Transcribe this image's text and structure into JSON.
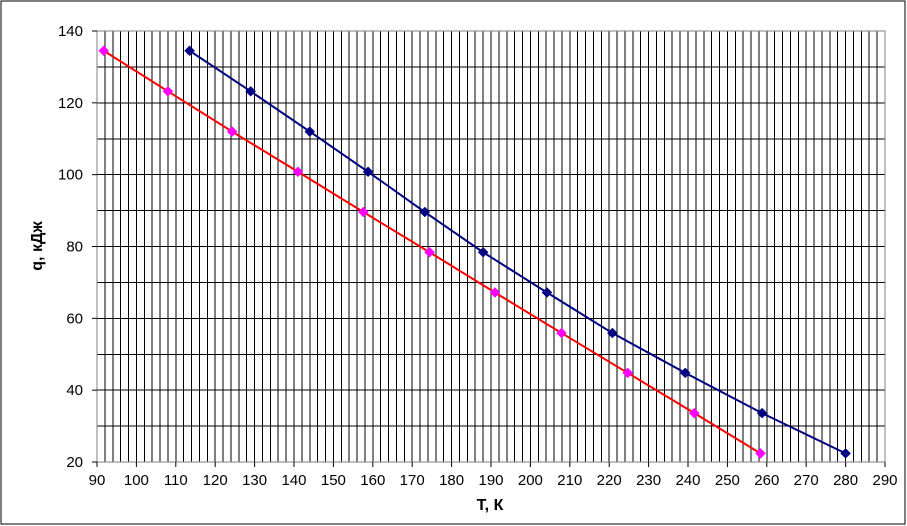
{
  "chart_data": {
    "type": "line",
    "title": "",
    "xlabel": "T, К",
    "ylabel": "q, кДж",
    "xlim": [
      90,
      290
    ],
    "ylim": [
      20,
      140
    ],
    "x_major_ticks": [
      90,
      100,
      110,
      120,
      130,
      140,
      150,
      160,
      170,
      180,
      190,
      200,
      210,
      220,
      230,
      240,
      250,
      260,
      270,
      280,
      290
    ],
    "x_minor_step": 2,
    "y_major_ticks": [
      20,
      40,
      60,
      80,
      100,
      120,
      140
    ],
    "y_minor_step": 10,
    "grid": true,
    "legend": "none",
    "series": [
      {
        "color": "#ff0000",
        "marker": "diamond",
        "marker_color": "#ff00ff",
        "points": [
          {
            "x": 91.7,
            "y": 134.5
          },
          {
            "x": 108.0,
            "y": 123.2
          },
          {
            "x": 124.3,
            "y": 112.0
          },
          {
            "x": 141.0,
            "y": 100.8
          },
          {
            "x": 157.6,
            "y": 89.6
          },
          {
            "x": 174.4,
            "y": 78.4
          },
          {
            "x": 191.0,
            "y": 67.2
          },
          {
            "x": 207.9,
            "y": 55.9
          },
          {
            "x": 224.7,
            "y": 44.8
          },
          {
            "x": 241.6,
            "y": 33.6
          },
          {
            "x": 258.4,
            "y": 22.4
          }
        ]
      },
      {
        "color": "#000080",
        "marker": "diamond",
        "marker_color": "#000080",
        "points": [
          {
            "x": 113.5,
            "y": 134.5
          },
          {
            "x": 129.0,
            "y": 123.2
          },
          {
            "x": 144.0,
            "y": 112.0
          },
          {
            "x": 158.8,
            "y": 100.8
          },
          {
            "x": 173.2,
            "y": 89.6
          },
          {
            "x": 188.0,
            "y": 78.4
          },
          {
            "x": 204.2,
            "y": 67.2
          },
          {
            "x": 220.8,
            "y": 55.9
          },
          {
            "x": 239.3,
            "y": 44.8
          },
          {
            "x": 258.8,
            "y": 33.6
          },
          {
            "x": 280.0,
            "y": 22.4
          }
        ]
      }
    ]
  }
}
